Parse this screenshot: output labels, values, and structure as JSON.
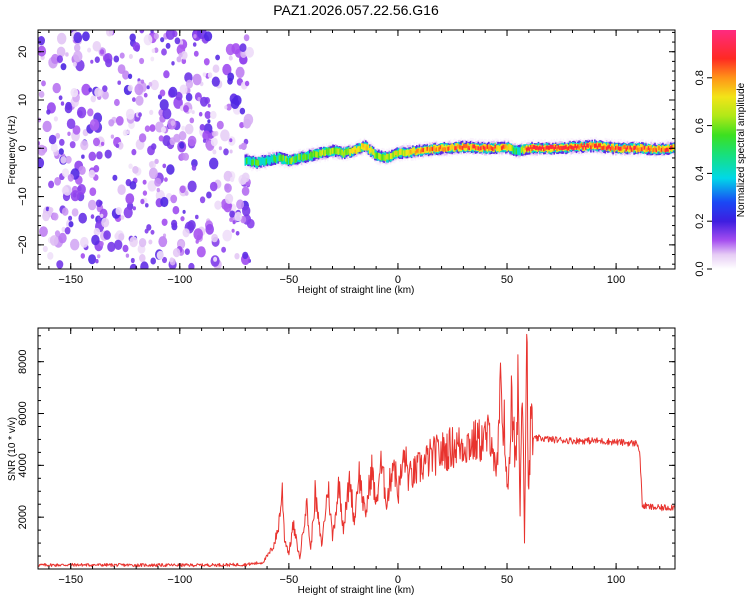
{
  "title": "PAZ1.2026.057.22.56.G16",
  "colors": {
    "snr_line": "#e8332e",
    "axis": "#000000"
  },
  "chart_data": [
    {
      "type": "heatmap",
      "name": "spectrogram",
      "xlabel": "Height of straight line (km)",
      "ylabel": "Frequency (Hz)",
      "xlim": [
        -165,
        127
      ],
      "ylim": [
        -25,
        24.5
      ],
      "x_ticks": [
        -150,
        -100,
        -50,
        0,
        50,
        100
      ],
      "y_ticks": [
        -20,
        -10,
        0,
        10,
        20
      ],
      "colorbar": {
        "label": "Normalized spectral amplitude",
        "range": [
          0,
          1
        ],
        "ticks": [
          0.0,
          0.2,
          0.4,
          0.6,
          0.8
        ],
        "tick_labels": [
          "0.0",
          "0.2",
          "0.4",
          "0.6",
          "0.8"
        ]
      },
      "noise_region_x": [
        -165,
        -67
      ],
      "noise_amplitude": 0.1,
      "ridge": {
        "x": [
          -70,
          -65,
          -60,
          -55,
          -50,
          -45,
          -40,
          -35,
          -30,
          -25,
          -20,
          -15,
          -10,
          -5,
          0,
          5,
          10,
          20,
          30,
          40,
          50,
          55,
          60,
          70,
          80,
          90,
          100,
          110,
          120,
          127
        ],
        "freq": [
          -2.5,
          -3,
          -2.5,
          -2,
          -2.5,
          -2,
          -1.5,
          -1,
          -0.5,
          -1,
          -0.5,
          0.5,
          -1.5,
          -2,
          -1,
          -0.8,
          -0.5,
          0,
          0.3,
          0,
          0.2,
          -0.5,
          0,
          0,
          0.2,
          0.5,
          0,
          0,
          -0.2,
          0
        ],
        "amplitude": [
          0.5,
          0.55,
          0.5,
          0.55,
          0.6,
          0.6,
          0.62,
          0.65,
          0.65,
          0.6,
          0.7,
          0.75,
          0.65,
          0.65,
          0.7,
          0.75,
          0.8,
          0.85,
          0.85,
          0.85,
          0.8,
          0.45,
          0.95,
          0.95,
          0.95,
          0.9,
          0.9,
          0.9,
          0.85,
          0.85
        ]
      }
    },
    {
      "type": "line",
      "name": "snr",
      "xlabel": "Height of straight line (km)",
      "ylabel": "SNR (10 * v/v)",
      "xlim": [
        -165,
        127
      ],
      "ylim": [
        0,
        9300
      ],
      "x_ticks": [
        -150,
        -100,
        -50,
        0,
        50,
        100
      ],
      "y_ticks": [
        2000,
        4000,
        6000,
        8000
      ],
      "series": [
        {
          "name": "SNR",
          "x": [
            -165,
            -150,
            -120,
            -90,
            -70,
            -62,
            -59,
            -57,
            -55,
            -53,
            -52,
            -50,
            -48,
            -45,
            -42,
            -40,
            -38,
            -35,
            -32,
            -30,
            -27,
            -25,
            -22,
            -20,
            -18,
            -15,
            -12,
            -10,
            -8,
            -5,
            -2,
            0,
            3,
            5,
            10,
            15,
            20,
            25,
            30,
            35,
            40,
            43,
            45,
            47,
            49,
            50,
            52,
            54,
            55,
            56,
            57,
            58,
            59,
            60,
            61,
            62,
            65,
            70,
            80,
            90,
            100,
            108,
            110,
            111,
            112,
            115,
            120,
            127
          ],
          "y": [
            150,
            160,
            150,
            150,
            170,
            250,
            600,
            900,
            1500,
            3000,
            1200,
            600,
            1700,
            400,
            2600,
            700,
            2900,
            900,
            3200,
            1200,
            3300,
            1600,
            3500,
            1800,
            3800,
            2000,
            3900,
            2400,
            4100,
            2600,
            4300,
            2900,
            4400,
            3500,
            3900,
            4300,
            4500,
            4700,
            4800,
            4900,
            5000,
            5300,
            3200,
            6500,
            5700,
            2600,
            6300,
            3800,
            7800,
            2100,
            8500,
            1300,
            9300,
            2600,
            6000,
            5000,
            5050,
            5000,
            4950,
            4950,
            4900,
            4850,
            4850,
            4300,
            2450,
            2400,
            2350,
            2400
          ]
        }
      ]
    }
  ]
}
